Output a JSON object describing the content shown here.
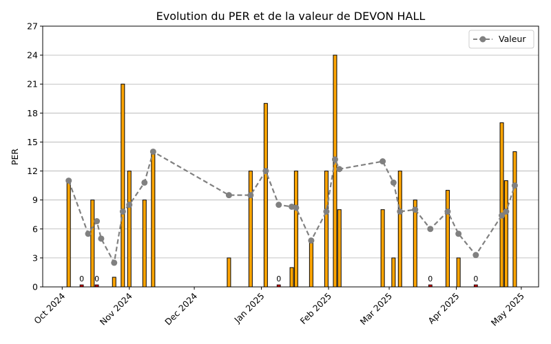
{
  "chart_data": {
    "type": "bar",
    "title": "Evolution du PER et de la valeur de DEVON HALL",
    "xlabel": "",
    "ylabel": "PER",
    "ylim": [
      0,
      27
    ],
    "xlim": [
      "2024-09-22",
      "2025-05-09"
    ],
    "yticks": [
      0,
      3,
      6,
      9,
      12,
      15,
      18,
      21,
      24,
      27
    ],
    "xticks": [
      {
        "date": "2024-10-01",
        "label": "Oct 2024"
      },
      {
        "date": "2024-11-01",
        "label": "Nov 2024"
      },
      {
        "date": "2024-12-01",
        "label": "Dec 2024"
      },
      {
        "date": "2025-01-01",
        "label": "Jan 2025"
      },
      {
        "date": "2025-02-01",
        "label": "Feb 2025"
      },
      {
        "date": "2025-03-01",
        "label": "Mar 2025"
      },
      {
        "date": "2025-04-01",
        "label": "Apr 2025"
      },
      {
        "date": "2025-05-01",
        "label": "May 2025"
      }
    ],
    "grid": "horizontal",
    "legend_position": "top-right",
    "bar_color": "#ffa500",
    "zero_color": "#cc0000",
    "line_color": "#808080",
    "zero_label": "0",
    "per": [
      {
        "date": "2024-10-04",
        "value": 11
      },
      {
        "date": "2024-10-10",
        "value": 0
      },
      {
        "date": "2024-10-15",
        "value": 9
      },
      {
        "date": "2024-10-17",
        "value": 0
      },
      {
        "date": "2024-10-25",
        "value": 1
      },
      {
        "date": "2024-10-29",
        "value": 21
      },
      {
        "date": "2024-11-01",
        "value": 12
      },
      {
        "date": "2024-11-08",
        "value": 9
      },
      {
        "date": "2024-11-12",
        "value": 14
      },
      {
        "date": "2024-12-17",
        "value": 3
      },
      {
        "date": "2024-12-27",
        "value": 12
      },
      {
        "date": "2025-01-03",
        "value": 19
      },
      {
        "date": "2025-01-09",
        "value": 0
      },
      {
        "date": "2025-01-15",
        "value": 2
      },
      {
        "date": "2025-01-17",
        "value": 12
      },
      {
        "date": "2025-01-24",
        "value": 5
      },
      {
        "date": "2025-01-31",
        "value": 12
      },
      {
        "date": "2025-02-04",
        "value": 24
      },
      {
        "date": "2025-02-06",
        "value": 8
      },
      {
        "date": "2025-02-26",
        "value": 8
      },
      {
        "date": "2025-03-03",
        "value": 3
      },
      {
        "date": "2025-03-06",
        "value": 12
      },
      {
        "date": "2025-03-13",
        "value": 9
      },
      {
        "date": "2025-03-20",
        "value": 0
      },
      {
        "date": "2025-03-28",
        "value": 10
      },
      {
        "date": "2025-04-02",
        "value": 3
      },
      {
        "date": "2025-04-10",
        "value": 0
      },
      {
        "date": "2025-04-22",
        "value": 17
      },
      {
        "date": "2025-04-24",
        "value": 11
      },
      {
        "date": "2025-04-28",
        "value": 14
      }
    ],
    "series": [
      {
        "name": "Valeur",
        "points": [
          {
            "date": "2024-10-04",
            "y": 11.0
          },
          {
            "date": "2024-10-13",
            "y": 5.5
          },
          {
            "date": "2024-10-17",
            "y": 6.8
          },
          {
            "date": "2024-10-19",
            "y": 5.0
          },
          {
            "date": "2024-10-25",
            "y": 2.5
          },
          {
            "date": "2024-10-29",
            "y": 7.8
          },
          {
            "date": "2024-11-01",
            "y": 8.5
          },
          {
            "date": "2024-11-08",
            "y": 10.8
          },
          {
            "date": "2024-11-12",
            "y": 14.0
          },
          {
            "date": "2024-12-17",
            "y": 9.5
          },
          {
            "date": "2024-12-27",
            "y": 9.5
          },
          {
            "date": "2025-01-03",
            "y": 12.0
          },
          {
            "date": "2025-01-09",
            "y": 8.5
          },
          {
            "date": "2025-01-15",
            "y": 8.3
          },
          {
            "date": "2025-01-17",
            "y": 8.2
          },
          {
            "date": "2025-01-24",
            "y": 4.8
          },
          {
            "date": "2025-01-31",
            "y": 7.8
          },
          {
            "date": "2025-02-04",
            "y": 13.2
          },
          {
            "date": "2025-02-06",
            "y": 12.2
          },
          {
            "date": "2025-02-26",
            "y": 13.0
          },
          {
            "date": "2025-03-03",
            "y": 10.8
          },
          {
            "date": "2025-03-06",
            "y": 7.8
          },
          {
            "date": "2025-03-13",
            "y": 8.0
          },
          {
            "date": "2025-03-20",
            "y": 6.0
          },
          {
            "date": "2025-03-28",
            "y": 7.8
          },
          {
            "date": "2025-04-02",
            "y": 5.5
          },
          {
            "date": "2025-04-10",
            "y": 3.3
          },
          {
            "date": "2025-04-22",
            "y": 7.4
          },
          {
            "date": "2025-04-24",
            "y": 7.8
          },
          {
            "date": "2025-04-28",
            "y": 10.5
          }
        ]
      }
    ]
  }
}
